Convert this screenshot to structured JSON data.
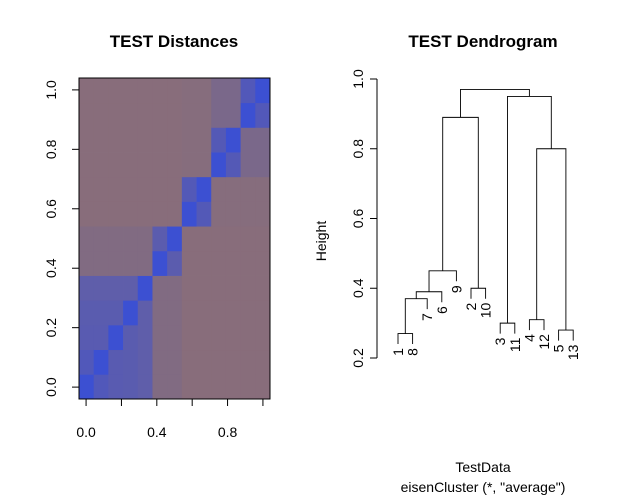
{
  "chart_data": [
    {
      "type": "heatmap",
      "title": "TEST Distances",
      "xlabel": "",
      "ylabel": "",
      "xlim": [
        -0.04,
        1.04
      ],
      "ylim": [
        -0.04,
        1.04
      ],
      "x_ticks": [
        "0.0",
        "0.4",
        "0.8"
      ],
      "y_ticks": [
        "0.0",
        "0.2",
        "0.4",
        "0.6",
        "0.8",
        "1.0"
      ],
      "grid": false,
      "order": [
        1,
        8,
        7,
        6,
        9,
        2,
        10,
        3,
        11,
        4,
        12,
        5,
        13
      ],
      "colors": {
        "low": "#3c50d2",
        "high": "#8a6e78"
      },
      "matrix": [
        [
          0.0,
          0.27,
          0.37,
          0.39,
          0.45,
          0.89,
          0.89,
          0.97,
          0.97,
          0.97,
          0.97,
          0.97,
          0.97
        ],
        [
          0.27,
          0.0,
          0.37,
          0.39,
          0.45,
          0.89,
          0.89,
          0.97,
          0.97,
          0.97,
          0.97,
          0.97,
          0.97
        ],
        [
          0.37,
          0.37,
          0.0,
          0.39,
          0.45,
          0.89,
          0.89,
          0.97,
          0.97,
          0.97,
          0.97,
          0.97,
          0.97
        ],
        [
          0.39,
          0.39,
          0.39,
          0.0,
          0.45,
          0.89,
          0.89,
          0.97,
          0.97,
          0.97,
          0.97,
          0.97,
          0.97
        ],
        [
          0.45,
          0.45,
          0.45,
          0.45,
          0.0,
          0.89,
          0.89,
          0.97,
          0.97,
          0.97,
          0.97,
          0.97,
          0.97
        ],
        [
          0.89,
          0.89,
          0.89,
          0.89,
          0.89,
          0.0,
          0.4,
          0.97,
          0.97,
          0.97,
          0.97,
          0.97,
          0.97
        ],
        [
          0.89,
          0.89,
          0.89,
          0.89,
          0.89,
          0.4,
          0.0,
          0.97,
          0.97,
          0.97,
          0.97,
          0.97,
          0.97
        ],
        [
          0.97,
          0.97,
          0.97,
          0.97,
          0.97,
          0.97,
          0.97,
          0.0,
          0.3,
          0.95,
          0.95,
          0.95,
          0.95
        ],
        [
          0.97,
          0.97,
          0.97,
          0.97,
          0.97,
          0.97,
          0.97,
          0.3,
          0.0,
          0.95,
          0.95,
          0.95,
          0.95
        ],
        [
          0.97,
          0.97,
          0.97,
          0.97,
          0.97,
          0.97,
          0.97,
          0.95,
          0.95,
          0.0,
          0.31,
          0.8,
          0.8
        ],
        [
          0.97,
          0.97,
          0.97,
          0.97,
          0.97,
          0.97,
          0.97,
          0.95,
          0.95,
          0.31,
          0.0,
          0.8,
          0.8
        ],
        [
          0.97,
          0.97,
          0.97,
          0.97,
          0.97,
          0.97,
          0.97,
          0.95,
          0.95,
          0.8,
          0.8,
          0.0,
          0.28
        ],
        [
          0.97,
          0.97,
          0.97,
          0.97,
          0.97,
          0.97,
          0.97,
          0.95,
          0.95,
          0.8,
          0.8,
          0.28,
          0.0
        ]
      ]
    },
    {
      "type": "dendrogram",
      "title": "TEST Dendrogram",
      "xlabel": "TestData",
      "sublabel": "eisenCluster (*, \"average\")",
      "ylabel": "Height",
      "ylim": [
        0.2,
        1.0
      ],
      "y_ticks": [
        0.2,
        0.4,
        0.6,
        0.8,
        1.0
      ],
      "leaves": [
        "1",
        "8",
        "7",
        "6",
        "9",
        "2",
        "10",
        "3",
        "11",
        "4",
        "12",
        "5",
        "13"
      ],
      "merges": [
        {
          "left": "1",
          "right": "8",
          "height": 0.27
        },
        {
          "left": "(1,8)",
          "right": "7",
          "height": 0.37
        },
        {
          "left": "(1,8,7)",
          "right": "6",
          "height": 0.39
        },
        {
          "left": "(1,8,7,6)",
          "right": "9",
          "height": 0.45
        },
        {
          "left": "2",
          "right": "10",
          "height": 0.4
        },
        {
          "left": "(1,8,7,6,9)",
          "right": "(2,10)",
          "height": 0.89
        },
        {
          "left": "3",
          "right": "11",
          "height": 0.3
        },
        {
          "left": "4",
          "right": "12",
          "height": 0.31
        },
        {
          "left": "5",
          "right": "13",
          "height": 0.28
        },
        {
          "left": "(4,12)",
          "right": "(5,13)",
          "height": 0.8
        },
        {
          "left": "(3,11)",
          "right": "(4,12,5,13)",
          "height": 0.95
        },
        {
          "left": "(1,8,7,6,9,2,10)",
          "right": "(3,11,4,12,5,13)",
          "height": 0.97
        }
      ]
    }
  ]
}
